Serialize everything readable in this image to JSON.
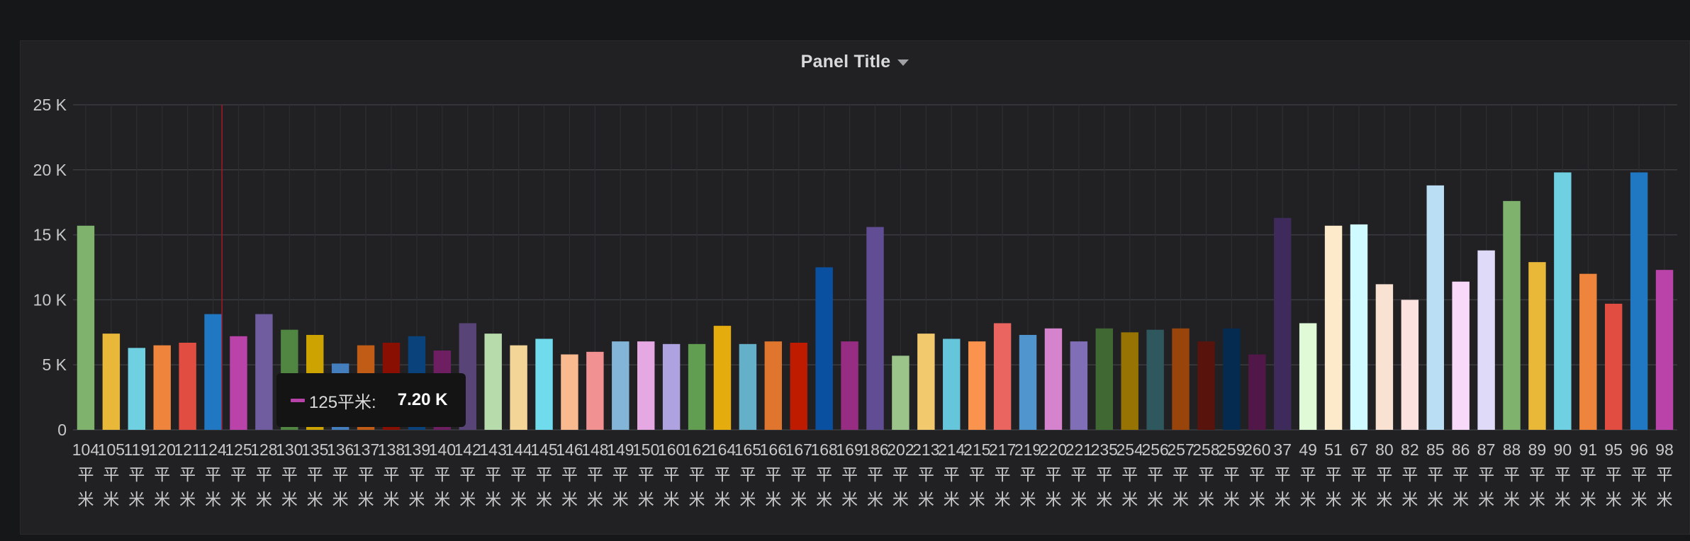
{
  "panel": {
    "title": "Panel Title"
  },
  "tooltip": {
    "label": "125平米:",
    "value": "7.20 K",
    "color": "#b843a8"
  },
  "chart_data": {
    "type": "bar",
    "title": "Panel Title",
    "xlabel": "",
    "ylabel": "",
    "ylim": [
      0,
      25000
    ],
    "yticks": [
      0,
      5000,
      10000,
      15000,
      20000,
      25000
    ],
    "ytick_labels": [
      "0",
      "5 K",
      "10 K",
      "15 K",
      "20 K",
      "25 K"
    ],
    "grid": true,
    "hover_category": "125平米",
    "categories": [
      "104平米",
      "105平米",
      "119平米",
      "120平米",
      "121平米",
      "124平米",
      "125平米",
      "128平米",
      "130平米",
      "135平米",
      "136平米",
      "137平米",
      "138平米",
      "139平米",
      "140平米",
      "142平米",
      "143平米",
      "144平米",
      "145平米",
      "146平米",
      "148平米",
      "149平米",
      "150平米",
      "160平米",
      "162平米",
      "164平米",
      "165平米",
      "166平米",
      "167平米",
      "168平米",
      "169平米",
      "186平米",
      "202平米",
      "213平米",
      "214平米",
      "215平米",
      "217平米",
      "219平米",
      "220平米",
      "221平米",
      "235平米",
      "254平米",
      "256平米",
      "257平米",
      "258平米",
      "259平米",
      "260平米",
      "37平米",
      "49平米",
      "51平米",
      "67平米",
      "80平米",
      "82平米",
      "85平米",
      "86平米",
      "87平米",
      "88平米",
      "89平米",
      "90平米",
      "91平米",
      "95平米",
      "96平米",
      "98平米"
    ],
    "values": [
      15700,
      7400,
      6300,
      6500,
      6700,
      8900,
      7200,
      8900,
      7700,
      7300,
      5100,
      6500,
      6700,
      7200,
      6100,
      8200,
      7400,
      6500,
      7000,
      5800,
      6000,
      6800,
      6800,
      6600,
      6600,
      8000,
      6600,
      6800,
      6700,
      12500,
      6800,
      15600,
      5700,
      7400,
      7000,
      6800,
      8200,
      7300,
      7800,
      6800,
      7800,
      7500,
      7700,
      7800,
      6800,
      7800,
      5800,
      16300,
      8200,
      15700,
      15800,
      11200,
      10000,
      18800,
      11400,
      13800,
      17600,
      12900,
      19800,
      12000,
      9700,
      19800,
      12300
    ],
    "colors": [
      "#7eb26d",
      "#eab839",
      "#6ed0e0",
      "#ef843c",
      "#e24d42",
      "#1f78c1",
      "#ba43a9",
      "#705da0",
      "#508642",
      "#cca300",
      "#447ebc",
      "#c15c17",
      "#890f02",
      "#0a437c",
      "#6d1f62",
      "#584477",
      "#b7dbab",
      "#f4d598",
      "#70dbed",
      "#f9ba8f",
      "#f29191",
      "#82b5d8",
      "#e5a8e2",
      "#aea2e0",
      "#629e51",
      "#e5ac0e",
      "#64b0c8",
      "#e0752d",
      "#bf1b00",
      "#0a50a1",
      "#962d82",
      "#614d93",
      "#9ac48a",
      "#f2c96d",
      "#65c5db",
      "#f9934e",
      "#ea6460",
      "#5195ce",
      "#d683ce",
      "#806eb7",
      "#3f6833",
      "#967302",
      "#2f575e",
      "#99440a",
      "#58140c",
      "#052b51",
      "#511749",
      "#3f2b5b",
      "#e0f9d7",
      "#fceaca",
      "#cffaff",
      "#f9e2d2",
      "#fce2de",
      "#badff4",
      "#f9d9f9",
      "#dedaf7",
      "#7eb26d",
      "#eab839",
      "#6ed0e0",
      "#ef843c",
      "#e24d42",
      "#1f78c1",
      "#ba43a9"
    ]
  }
}
